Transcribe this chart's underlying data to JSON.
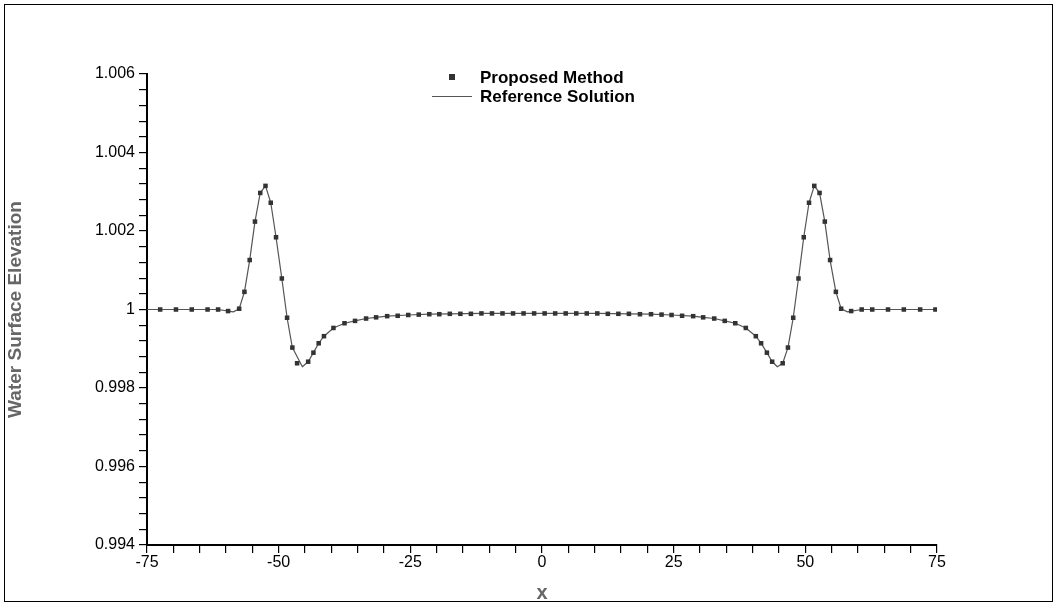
{
  "chart_data": {
    "type": "line",
    "xlabel": "x",
    "ylabel": "Water Surface Elevation",
    "legend": "top",
    "xlim": [
      -75,
      75
    ],
    "xticks": [
      -75,
      {
        "value": -70,
        "label": null
      },
      {
        "value": -65,
        "label": null
      },
      {
        "value": -60,
        "label": null
      },
      {
        "value": -55,
        "label": null
      },
      -50,
      {
        "value": -45,
        "label": null
      },
      {
        "value": -40,
        "label": null
      },
      {
        "value": -35,
        "label": null
      },
      {
        "value": -30,
        "label": null
      },
      -25,
      {
        "value": -20,
        "label": null
      },
      {
        "value": -15,
        "label": null
      },
      {
        "value": -10,
        "label": null
      },
      {
        "value": -5,
        "label": null
      },
      0,
      {
        "value": 5,
        "label": null
      },
      {
        "value": 10,
        "label": null
      },
      {
        "value": 15,
        "label": null
      },
      {
        "value": 20,
        "label": null
      },
      25,
      {
        "value": 30,
        "label": null
      },
      {
        "value": 35,
        "label": null
      },
      {
        "value": 40,
        "label": null
      },
      {
        "value": 45,
        "label": null
      },
      50,
      {
        "value": 55,
        "label": null
      },
      {
        "value": 60,
        "label": null
      },
      {
        "value": 65,
        "label": null
      },
      {
        "value": 70,
        "label": null
      },
      75
    ],
    "ylim": [
      0.994,
      1.006
    ],
    "yticks": [
      0.994,
      {
        "value": 0.9944,
        "label": null
      },
      {
        "value": 0.9948,
        "label": null
      },
      {
        "value": 0.9952,
        "label": null
      },
      {
        "value": 0.9956,
        "label": null
      },
      0.996,
      {
        "value": 0.9964,
        "label": null
      },
      {
        "value": 0.9968,
        "label": null
      },
      {
        "value": 0.9972,
        "label": null
      },
      {
        "value": 0.9976,
        "label": null
      },
      0.998,
      {
        "value": 0.9984,
        "label": null
      },
      {
        "value": 0.9988,
        "label": null
      },
      {
        "value": 0.9992,
        "label": null
      },
      {
        "value": 0.9996,
        "label": null
      },
      1,
      {
        "value": 1.0004,
        "label": null
      },
      {
        "value": 1.0008,
        "label": null
      },
      {
        "value": 1.0012,
        "label": null
      },
      {
        "value": 1.0016,
        "label": null
      },
      1.002,
      {
        "value": 1.0024,
        "label": null
      },
      {
        "value": 1.0028,
        "label": null
      },
      {
        "value": 1.0032,
        "label": null
      },
      {
        "value": 1.0036,
        "label": null
      },
      1.004,
      {
        "value": 1.0044,
        "label": null
      },
      {
        "value": 1.0048,
        "label": null
      },
      {
        "value": 1.0052,
        "label": null
      },
      {
        "value": 1.0056,
        "label": null
      },
      1.006
    ],
    "grid": false,
    "series": [
      {
        "name": "Proposed Method",
        "type": "scatter",
        "marker": "square",
        "color": "#333333",
        "x": [
          -72.5,
          -69.5,
          -66.5,
          -63.5,
          -61.5,
          -59.6,
          -57.5,
          -56.5,
          -55.5,
          -54.5,
          -53.5,
          -52.5,
          -51.5,
          -50.5,
          -49.4,
          -48.4,
          -47.4,
          -46.5,
          -44.4,
          -43.4,
          -42.4,
          -41.4,
          -39.6,
          -37.5,
          -35.5,
          -33.4,
          -31.5,
          -29.4,
          -27.4,
          -25.4,
          -23.4,
          -21.4,
          -19.5,
          -17.5,
          -15.5,
          -13.5,
          -11.5,
          -9.5,
          -7.5,
          -5.5,
          -3.5,
          -1.5,
          0.5,
          2.5,
          4.5,
          6.5,
          8.5,
          10.5,
          12.5,
          14.5,
          16.5,
          18.6,
          20.7,
          22.7,
          24.6,
          26.6,
          28.7,
          30.6,
          32.7,
          34.7,
          36.7,
          38.7,
          40.6,
          41.6,
          42.7,
          43.7,
          45.7,
          46.7,
          47.7,
          48.7,
          49.7,
          50.7,
          51.7,
          52.7,
          53.7,
          54.7,
          55.8,
          56.8,
          58.7,
          60.7,
          62.7,
          65.7,
          68.7,
          71.8,
          74.7
        ],
        "values": [
          1.0,
          1.0,
          1.0,
          1.0,
          1.0,
          0.99996,
          1.00002,
          1.00045,
          1.00126,
          1.00224,
          1.00297,
          1.00315,
          1.00272,
          1.00184,
          1.00079,
          0.99979,
          0.99903,
          0.99863,
          0.99867,
          0.9989,
          0.99914,
          0.99932,
          0.99953,
          0.99965,
          0.99971,
          0.99977,
          0.9998,
          0.99983,
          0.99984,
          0.99986,
          0.99987,
          0.99988,
          0.99988,
          0.99989,
          0.99989,
          0.99989,
          0.9999,
          0.9999,
          0.9999,
          0.9999,
          0.9999,
          0.9999,
          0.9999,
          0.9999,
          0.9999,
          0.9999,
          0.9999,
          0.9999,
          0.99989,
          0.99989,
          0.99989,
          0.99988,
          0.99988,
          0.99987,
          0.99986,
          0.99984,
          0.99983,
          0.9998,
          0.99977,
          0.99971,
          0.99965,
          0.99953,
          0.99932,
          0.99914,
          0.9989,
          0.99867,
          0.99863,
          0.99903,
          0.99979,
          1.00079,
          1.00184,
          1.00272,
          1.00315,
          1.00297,
          1.00224,
          1.00126,
          1.00045,
          1.00002,
          0.99996,
          1.0,
          1.0,
          1.0,
          1.0,
          1.0,
          1.0
        ]
      },
      {
        "name": "Reference Solution",
        "marker": "none",
        "line_style": "solid",
        "color": "#555555",
        "x": [
          -75,
          -69.5,
          -63.5,
          -61.5,
          -58.6,
          -57.5,
          -56.5,
          -55.5,
          -54.5,
          -53.5,
          -52.5,
          -51.5,
          -50.5,
          -49.4,
          -48.4,
          -47.4,
          -45.5,
          -44.4,
          -43.4,
          -42.4,
          -41.4,
          -39.6,
          -37.5,
          -35.5,
          -33.4,
          -31.5,
          -29.4,
          -25.4,
          -21.4,
          -17.5,
          -11.5,
          0.5,
          10.5,
          16.5,
          20.7,
          24.6,
          28.7,
          30.6,
          32.7,
          34.7,
          36.7,
          38.7,
          40.6,
          41.6,
          42.7,
          43.7,
          44.7,
          45.7,
          46.7,
          47.7,
          48.7,
          49.7,
          50.7,
          51.7,
          52.7,
          53.7,
          54.7,
          55.8,
          56.8,
          58.0,
          60.7,
          65.7,
          75
        ],
        "values": [
          1.0,
          1.0,
          1.0,
          1.0,
          0.99994,
          1.00002,
          1.00045,
          1.00126,
          1.00224,
          1.00297,
          1.00315,
          1.00272,
          1.00184,
          1.00079,
          0.99979,
          0.99903,
          0.99854,
          0.99867,
          0.9989,
          0.99914,
          0.99932,
          0.99953,
          0.99965,
          0.99971,
          0.99977,
          0.9998,
          0.99983,
          0.99986,
          0.99988,
          0.99989,
          0.9999,
          0.9999,
          0.9999,
          0.99989,
          0.99988,
          0.99986,
          0.99983,
          0.9998,
          0.99977,
          0.99971,
          0.99965,
          0.99953,
          0.99932,
          0.99914,
          0.9989,
          0.99867,
          0.99854,
          0.99863,
          0.99903,
          0.99979,
          1.00079,
          1.00184,
          1.00272,
          1.00315,
          1.00297,
          1.00224,
          1.00126,
          1.00045,
          1.00002,
          0.99994,
          1.0,
          1.0,
          1.0
        ]
      }
    ]
  }
}
